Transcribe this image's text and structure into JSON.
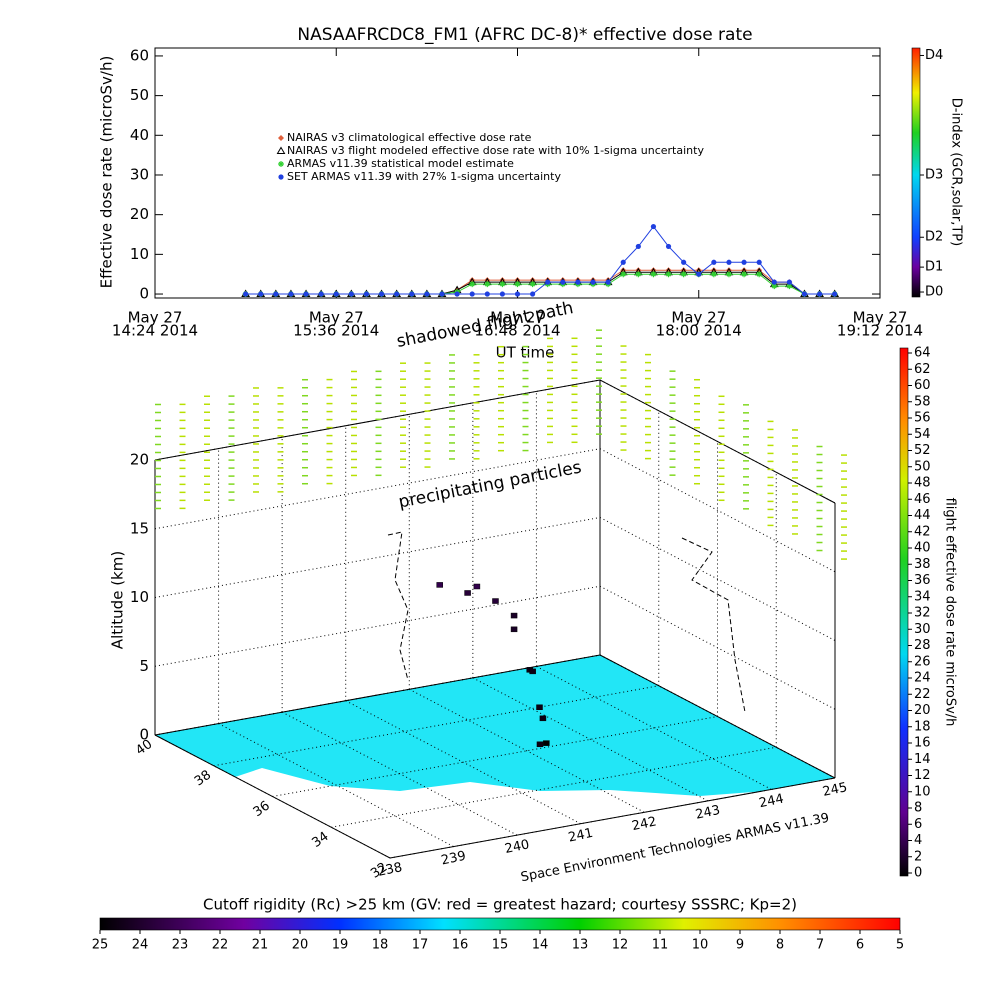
{
  "chart_data": [
    {
      "type": "line",
      "title": "NASAAFRCDC8_FM1 (AFRC DC-8)* effective dose rate",
      "y_label": "Effective dose rate (microSv/h)",
      "x_label": "UT time",
      "x": [
        15.0,
        15.1,
        15.2,
        15.3,
        15.4,
        15.5,
        15.6,
        15.7,
        15.8,
        15.9,
        16.0,
        16.1,
        16.2,
        16.3,
        16.4,
        16.5,
        16.6,
        16.7,
        16.8,
        16.9,
        17.0,
        17.1,
        17.2,
        17.3,
        17.4,
        17.5,
        17.6,
        17.7,
        17.8,
        17.9,
        18.0,
        18.1,
        18.2,
        18.3,
        18.4,
        18.5,
        18.6,
        18.7,
        18.8,
        18.9
      ],
      "xlim": [
        14.4,
        19.2
      ],
      "xticks": [
        {
          "value": 14.4,
          "label": [
            "May 27",
            "14:24 2014"
          ]
        },
        {
          "value": 15.6,
          "label": [
            "May 27",
            "15:36 2014"
          ]
        },
        {
          "value": 16.8,
          "label": [
            "May 27",
            "16:48 2014"
          ]
        },
        {
          "value": 18.0,
          "label": [
            "May 27",
            "18:00 2014"
          ]
        },
        {
          "value": 19.2,
          "label": [
            "May 27",
            "19:12 2014"
          ]
        }
      ],
      "ylim": [
        -1,
        62
      ],
      "yticks": [
        0,
        10,
        20,
        30,
        40,
        50,
        60
      ],
      "series": [
        {
          "name": "NAIRAS v3 climatological effective dose rate",
          "color": "#e0603c",
          "marker": "diamond",
          "values": [
            0,
            0,
            0,
            0,
            0,
            0,
            0,
            0,
            0,
            0,
            0,
            0,
            0,
            0,
            1,
            3.5,
            3.5,
            3.5,
            3.5,
            3.5,
            3.5,
            3.5,
            3.5,
            3.5,
            3.5,
            6,
            6,
            6,
            6,
            6,
            6,
            6,
            6,
            6,
            6,
            3,
            3,
            0,
            0,
            0
          ]
        },
        {
          "name": "NAIRAS v3 flight modeled effective dose rate with 10% 1-sigma uncertainty",
          "color": "#000000",
          "marker": "triangle",
          "values": [
            0,
            0,
            0,
            0,
            0,
            0,
            0,
            0,
            0,
            0,
            0,
            0,
            0,
            0,
            1,
            3,
            3,
            3,
            3,
            3,
            3,
            3,
            3,
            3,
            3,
            5.5,
            5.5,
            5.5,
            5.5,
            5.5,
            5.5,
            5.5,
            5.5,
            5.5,
            5.5,
            2.5,
            2.5,
            0,
            0,
            0
          ]
        },
        {
          "name": "ARMAS v11.39 statistical model estimate",
          "color": "#30d030",
          "marker": "asterisk",
          "values": [
            0,
            0,
            0,
            0,
            0,
            0,
            0,
            0,
            0,
            0,
            0,
            0,
            0,
            0,
            0.5,
            2.5,
            2.5,
            2.5,
            2.5,
            2.5,
            2.5,
            2.5,
            2.5,
            2.5,
            2.5,
            5,
            5,
            5,
            5,
            5,
            5,
            5,
            5,
            5,
            5,
            2,
            2,
            0,
            0,
            0
          ]
        },
        {
          "name": "SET ARMAS v11.39 with 27% 1-sigma uncertainty",
          "color": "#2040e0",
          "marker": "circle",
          "values": [
            0,
            0,
            0,
            0,
            0,
            0,
            0,
            0,
            0,
            0,
            0,
            0,
            0,
            0,
            0,
            0,
            0,
            0,
            0,
            0,
            3,
            3,
            3,
            3,
            3,
            8,
            12,
            17,
            12,
            8,
            5,
            8,
            8,
            8,
            8,
            3,
            3,
            0,
            0,
            0
          ]
        }
      ],
      "colorbar": {
        "label": "D-index (GCR,solar,TP)",
        "lim": [
          0,
          100
        ],
        "ticks": [
          {
            "value": 2,
            "label": "D0"
          },
          {
            "value": 12,
            "label": "D1"
          },
          {
            "value": 24,
            "label": "D2"
          },
          {
            "value": 49,
            "label": "D3"
          },
          {
            "value": 97,
            "label": "D4"
          }
        ]
      }
    },
    {
      "type": "scatter3d",
      "z_label": "Altitude (km)",
      "x_label": "Space Environment Technologies ARMAS v11.39",
      "annotations": [
        "shadowed flight path",
        "precipitating particles"
      ],
      "xlim": [
        238,
        245
      ],
      "xticks": [
        238,
        239,
        240,
        241,
        242,
        243,
        244,
        245
      ],
      "ylim": [
        32,
        40
      ],
      "yticks": [
        40,
        38,
        36,
        34,
        32
      ],
      "zlim": [
        0,
        20
      ],
      "zticks": [
        0,
        5,
        10,
        15,
        20
      ],
      "flight_path": {
        "lon": [
          242.3,
          242.2,
          242.0,
          241.8,
          241.6,
          241.3,
          241.0,
          241.4,
          241.8,
          242.0,
          242.3,
          242.4
        ],
        "lat": [
          36.2,
          36.0,
          35.9,
          36.0,
          36.2,
          36.5,
          36.8,
          36.4,
          36.0,
          35.8,
          36.1,
          36.2
        ],
        "alt": [
          0,
          3,
          6,
          9,
          11,
          11.5,
          12,
          12,
          10,
          6,
          2,
          0
        ],
        "dose": [
          1,
          1,
          1,
          2,
          3,
          3,
          4,
          4,
          2,
          1,
          1,
          0
        ]
      },
      "colorbar": {
        "label": "flight effective dose rate microSv/h",
        "lim": [
          0,
          64
        ],
        "ticks": [
          0,
          2,
          4,
          6,
          8,
          10,
          12,
          14,
          16,
          18,
          20,
          22,
          24,
          26,
          28,
          30,
          32,
          34,
          36,
          38,
          40,
          42,
          44,
          46,
          48,
          50,
          52,
          54,
          56,
          58,
          60,
          62,
          64
        ]
      },
      "rigidity_colorbar": {
        "label": "Cutoff rigidity (Rc) >25 km (GV: red = greatest hazard; courtesy SSSRC; Kp=2)",
        "lim": [
          25,
          5
        ],
        "ticks": [
          25,
          24,
          23,
          22,
          21,
          20,
          19,
          18,
          17,
          16,
          15,
          14,
          13,
          12,
          11,
          10,
          9,
          8,
          7,
          6,
          5
        ]
      }
    }
  ]
}
